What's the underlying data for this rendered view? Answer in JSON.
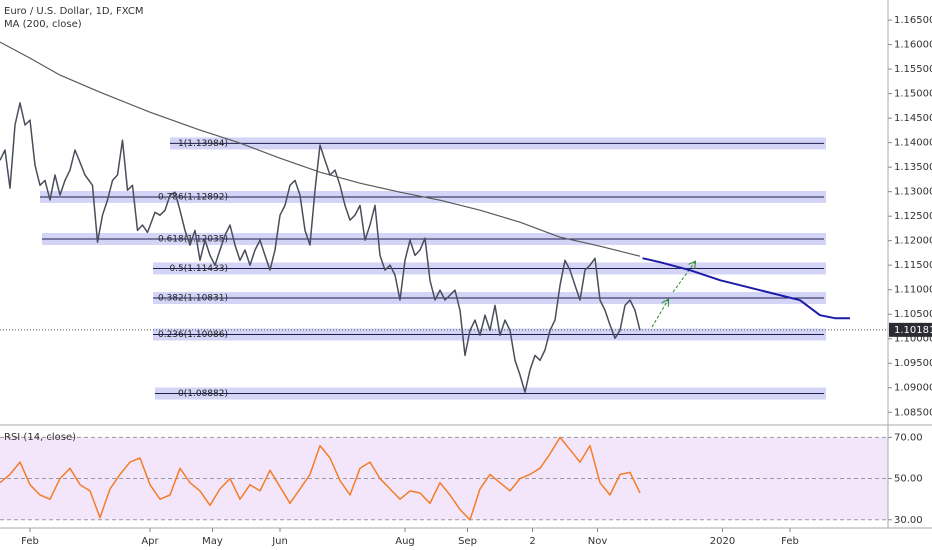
{
  "chart_data": [
    {
      "type": "line",
      "title": "Euro / U.S. Dollar, 1D, FXCM",
      "x": [
        0,
        2,
        4,
        6,
        8,
        10,
        12,
        14,
        16,
        18,
        20,
        22,
        24,
        26,
        28,
        30,
        32,
        34,
        37,
        39,
        41,
        43,
        45,
        47,
        49,
        51,
        53,
        55,
        57,
        59,
        62,
        64,
        66,
        68,
        70,
        72,
        74,
        76,
        78,
        80,
        82,
        84,
        86,
        88,
        90,
        92,
        94,
        96,
        98,
        100,
        102,
        104,
        106,
        108,
        110,
        112,
        114,
        116,
        118,
        120,
        122,
        124,
        126,
        128,
        130,
        132,
        134,
        136,
        138,
        140,
        142,
        144,
        146,
        148,
        150,
        152,
        154,
        156,
        158,
        160,
        162,
        164,
        166,
        168,
        170,
        172,
        174,
        176,
        178,
        180,
        182,
        184,
        186,
        188,
        190,
        192,
        194,
        196,
        198,
        200,
        202,
        204,
        206,
        208,
        210,
        212,
        214,
        216,
        218,
        220,
        222,
        224,
        226,
        228,
        230,
        232,
        234,
        236,
        238,
        240,
        242,
        244,
        246,
        248,
        250,
        252,
        254,
        256
      ],
      "series": [
        {
          "color": "#4a4e5a",
          "values": [
            1.1364,
            1.1385,
            1.1307,
            1.1436,
            1.1481,
            1.1436,
            1.1446,
            1.1354,
            1.1313,
            1.1323,
            1.1283,
            1.1334,
            1.1293,
            1.1323,
            1.1344,
            1.1385,
            1.136,
            1.1334,
            1.1313,
            1.1197,
            1.1252,
            1.1283,
            1.1323,
            1.1334,
            1.1405,
            1.1303,
            1.1313,
            1.1221,
            1.1232,
            1.1217,
            1.1258,
            1.1252,
            1.1262,
            1.1293,
            1.1299,
            1.1262,
            1.1221,
            1.1191,
            1.1221,
            1.116,
            1.1201,
            1.117,
            1.115,
            1.1181,
            1.1211,
            1.1232,
            1.1191,
            1.116,
            1.1181,
            1.115,
            1.1181,
            1.1201,
            1.117,
            1.114,
            1.1181,
            1.1252,
            1.1272,
            1.1313,
            1.1323,
            1.1293,
            1.1221,
            1.1191,
            1.1303,
            1.1395,
            1.1364,
            1.1334,
            1.1344,
            1.1313,
            1.1272,
            1.1242,
            1.1252,
            1.1272,
            1.1201,
            1.1232,
            1.1272,
            1.117,
            1.114,
            1.115,
            1.113,
            1.1079,
            1.116,
            1.1201,
            1.117,
            1.1181,
            1.1205,
            1.1119,
            1.1079,
            1.1099,
            1.1079,
            1.1089,
            1.1099,
            1.1058,
            1.0966,
            1.1017,
            1.1038,
            1.1007,
            1.1048,
            1.1017,
            1.1068,
            1.1007,
            1.1038,
            1.1017,
            1.0956,
            1.0926,
            1.0891,
            1.0936,
            1.0966,
            1.0956,
            1.0977,
            1.1017,
            1.1038,
            1.1109,
            1.116,
            1.114,
            1.1109,
            1.1079,
            1.114,
            1.115,
            1.1164,
            1.1079,
            1.1058,
            1.1028,
            1.1001,
            1.1017,
            1.1068,
            1.1079,
            1.1058,
            1.1017
          ]
        },
        {
          "name": "MA (200, close)",
          "color": "#5a5a5a",
          "x": [
            0,
            12,
            24,
            40,
            60,
            80,
            96,
            112,
            128,
            144,
            160,
            176,
            192,
            208,
            224,
            240,
            256
          ],
          "values": [
            1.16051,
            1.15724,
            1.15377,
            1.1503,
            1.14622,
            1.14255,
            1.1399,
            1.13683,
            1.13398,
            1.13173,
            1.1299,
            1.12826,
            1.12622,
            1.12377,
            1.12071,
            1.11888,
            1.11684
          ]
        },
        {
          "color": "#1c1ca8",
          "x": [
            257,
            264,
            276,
            288,
            304,
            320,
            328,
            334,
            340
          ],
          "values": [
            1.11643,
            1.11561,
            1.11398,
            1.11194,
            1.1099,
            1.10786,
            1.1048,
            1.10418,
            1.10418
          ]
        }
      ],
      "fib_levels": [
        {
          "label": "1(1.13984)",
          "value": 1.13984
        },
        {
          "label": "0.786(1.12892)",
          "value": 1.12892
        },
        {
          "label": "0.618(1.12035)",
          "value": 1.12035
        },
        {
          "label": "0.5(1.11433)",
          "value": 1.11433
        },
        {
          "label": "0.382(1.10831)",
          "value": 1.10831
        },
        {
          "label": "0.236(1.10086)",
          "value": 1.10086
        },
        {
          "label": "0(1.08882)",
          "value": 1.08882
        }
      ],
      "last_price": 1.10181,
      "xlim": [
        0,
        355.2
      ],
      "xticks": [
        {
          "value": 12,
          "label": "Feb"
        },
        {
          "value": 60,
          "label": "Apr"
        },
        {
          "value": 85,
          "label": "May"
        },
        {
          "value": 112,
          "label": "Jun"
        },
        {
          "value": 162,
          "label": "Aug"
        },
        {
          "value": 187,
          "label": "Sep"
        },
        {
          "value": 213,
          "label": "2"
        },
        {
          "value": 239,
          "label": "Nov"
        },
        {
          "value": 289,
          "label": "2020"
        },
        {
          "value": 316,
          "label": "Feb"
        }
      ],
      "ylim": [
        1.0824,
        1.1691
      ],
      "yticks": [
        {
          "value": 1.165,
          "label": "1.16500"
        },
        {
          "value": 1.16,
          "label": "1.16000"
        },
        {
          "value": 1.155,
          "label": "1.15500"
        },
        {
          "value": 1.15,
          "label": "1.15000"
        },
        {
          "value": 1.145,
          "label": "1.14500"
        },
        {
          "value": 1.14,
          "label": "1.14000"
        },
        {
          "value": 1.135,
          "label": "1.13500"
        },
        {
          "value": 1.13,
          "label": "1.13000"
        },
        {
          "value": 1.125,
          "label": "1.12500"
        },
        {
          "value": 1.12,
          "label": "1.12000"
        },
        {
          "value": 1.115,
          "label": "1.11500"
        },
        {
          "value": 1.11,
          "label": "1.11000"
        },
        {
          "value": 1.105,
          "label": "1.10500"
        },
        {
          "value": 1.1,
          "label": "1.10000"
        },
        {
          "value": 1.095,
          "label": "1.09500"
        },
        {
          "value": 1.09,
          "label": "1.09000"
        },
        {
          "value": 1.085,
          "label": "1.08500"
        }
      ]
    },
    {
      "type": "line",
      "title": "RSI (14, close)",
      "x": [
        0,
        4,
        8,
        12,
        16,
        20,
        24,
        28,
        32,
        36,
        40,
        44,
        48,
        52,
        56,
        60,
        64,
        68,
        72,
        76,
        80,
        84,
        88,
        92,
        96,
        100,
        104,
        108,
        112,
        116,
        120,
        124,
        128,
        132,
        136,
        140,
        144,
        148,
        152,
        156,
        160,
        164,
        168,
        172,
        176,
        180,
        184,
        188,
        192,
        196,
        200,
        204,
        208,
        212,
        216,
        220,
        224,
        228,
        232,
        236,
        240,
        244,
        248,
        252,
        256
      ],
      "series": [
        {
          "color": "#f57c28",
          "values": [
            48,
            52,
            58,
            47,
            42,
            40,
            50,
            55,
            47,
            44,
            31,
            45,
            52,
            58,
            60,
            47,
            40,
            42,
            55,
            48,
            44,
            37,
            45,
            50,
            40,
            47,
            44,
            54,
            46,
            38,
            45,
            52,
            66,
            60,
            49,
            42,
            55,
            58,
            50,
            45,
            40,
            44,
            43,
            38,
            48,
            42,
            35,
            30,
            45,
            52,
            48,
            44,
            50,
            52,
            55,
            62,
            70,
            64,
            58,
            66,
            48,
            42,
            52,
            53,
            43
          ]
        }
      ],
      "xlim": [
        0,
        355.2
      ],
      "ylim": [
        26,
        76
      ],
      "band": [
        30,
        70
      ],
      "yticks": [
        {
          "value": 70,
          "label": "70.00"
        },
        {
          "value": 50,
          "label": "50.00"
        },
        {
          "value": 30,
          "label": "30.00"
        }
      ]
    }
  ]
}
